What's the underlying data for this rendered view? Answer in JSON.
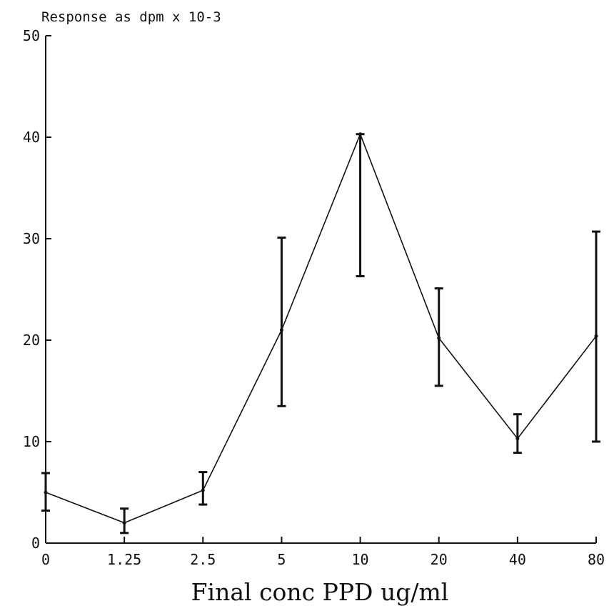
{
  "chart_data": {
    "type": "line",
    "ylabel": "Response as dpm x 10-3",
    "xlabel": "Final conc PPD ug/ml",
    "categories": [
      "0",
      "1.25",
      "2.5",
      "5",
      "10",
      "20",
      "40",
      "80"
    ],
    "ylim": [
      0,
      50
    ],
    "yticks": [
      0,
      10,
      20,
      30,
      40,
      50
    ],
    "grid": false,
    "series": [
      {
        "values": [
          5,
          2,
          5.2,
          21,
          40.3,
          20.2,
          10.3,
          20.4
        ],
        "error_low": [
          3.2,
          1,
          3.8,
          13.5,
          26.3,
          15.5,
          8.9,
          10
        ],
        "error_high": [
          6.9,
          3.4,
          7,
          30.1,
          40.3,
          25.1,
          12.7,
          30.7
        ]
      }
    ],
    "color": "#111111"
  }
}
